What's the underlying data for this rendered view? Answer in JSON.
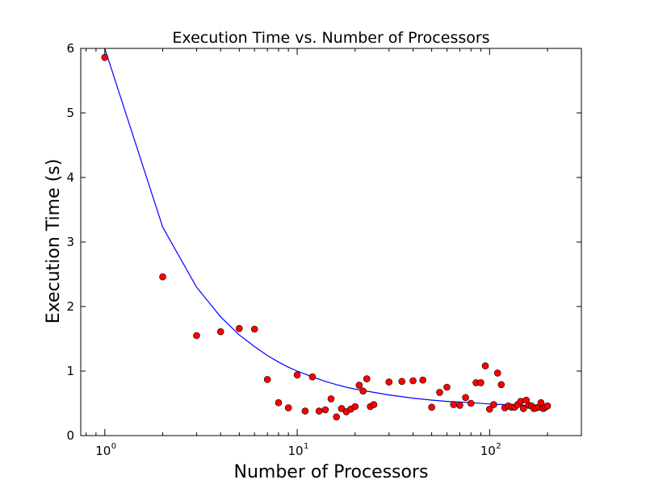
{
  "chart_data": {
    "type": "scatter",
    "title": "Execution Time vs. Number of Processors",
    "xlabel": "Number of Processors",
    "ylabel": "Execution Time (s)",
    "xscale": "log",
    "xlim": [
      0.75,
      300
    ],
    "ylim": [
      0,
      6
    ],
    "grid": false,
    "legend": "none",
    "x_ticks": [
      {
        "value": 1,
        "base": "10",
        "exp": "0"
      },
      {
        "value": 10,
        "base": "10",
        "exp": "1"
      },
      {
        "value": 100,
        "base": "10",
        "exp": "2"
      }
    ],
    "y_ticks": [
      0,
      1,
      2,
      3,
      4,
      5,
      6
    ],
    "colors": {
      "points": "#ff0000",
      "point_edge": "#000000",
      "curve": "#0000ff"
    },
    "series": [
      {
        "kind": "scatter",
        "points": [
          [
            1,
            5.86
          ],
          [
            2,
            2.46
          ],
          [
            3,
            1.55
          ],
          [
            4,
            1.61
          ],
          [
            5,
            1.66
          ],
          [
            6,
            1.65
          ],
          [
            7,
            0.87
          ],
          [
            8,
            0.51
          ],
          [
            9,
            0.43
          ],
          [
            10,
            0.94
          ],
          [
            11,
            0.38
          ],
          [
            12,
            0.91
          ],
          [
            13,
            0.38
          ],
          [
            14,
            0.4
          ],
          [
            15,
            0.57
          ],
          [
            16,
            0.29
          ],
          [
            17,
            0.42
          ],
          [
            18,
            0.37
          ],
          [
            19,
            0.41
          ],
          [
            20,
            0.45
          ],
          [
            21,
            0.78
          ],
          [
            22,
            0.69
          ],
          [
            23,
            0.88
          ],
          [
            24,
            0.45
          ],
          [
            25,
            0.48
          ],
          [
            30,
            0.83
          ],
          [
            35,
            0.84
          ],
          [
            40,
            0.85
          ],
          [
            45,
            0.86
          ],
          [
            50,
            0.44
          ],
          [
            55,
            0.67
          ],
          [
            60,
            0.75
          ],
          [
            65,
            0.48
          ],
          [
            70,
            0.47
          ],
          [
            75,
            0.59
          ],
          [
            80,
            0.5
          ],
          [
            85,
            0.82
          ],
          [
            90,
            0.82
          ],
          [
            95,
            1.08
          ],
          [
            100,
            0.41
          ],
          [
            105,
            0.48
          ],
          [
            110,
            0.97
          ],
          [
            115,
            0.79
          ],
          [
            120,
            0.43
          ],
          [
            125,
            0.46
          ],
          [
            130,
            0.44
          ],
          [
            135,
            0.44
          ],
          [
            140,
            0.48
          ],
          [
            145,
            0.53
          ],
          [
            150,
            0.42
          ],
          [
            155,
            0.55
          ],
          [
            160,
            0.47
          ],
          [
            165,
            0.46
          ],
          [
            170,
            0.42
          ],
          [
            175,
            0.43
          ],
          [
            180,
            0.44
          ],
          [
            185,
            0.51
          ],
          [
            190,
            0.42
          ],
          [
            195,
            0.44
          ],
          [
            200,
            0.46
          ]
        ]
      },
      {
        "kind": "line",
        "points": [
          [
            1,
            6.0
          ],
          [
            2,
            3.23
          ],
          [
            3,
            2.3
          ],
          [
            4,
            1.84
          ],
          [
            5,
            1.56
          ],
          [
            6,
            1.38
          ],
          [
            7,
            1.24
          ],
          [
            8,
            1.14
          ],
          [
            9,
            1.06
          ],
          [
            10,
            1.0
          ],
          [
            12,
            0.91
          ],
          [
            14,
            0.84
          ],
          [
            16,
            0.79
          ],
          [
            18,
            0.75
          ],
          [
            20,
            0.72
          ],
          [
            25,
            0.67
          ],
          [
            30,
            0.63
          ],
          [
            40,
            0.58
          ],
          [
            50,
            0.55
          ],
          [
            60,
            0.53
          ],
          [
            70,
            0.52
          ],
          [
            80,
            0.51
          ],
          [
            100,
            0.49
          ],
          [
            120,
            0.48
          ],
          [
            150,
            0.47
          ],
          [
            200,
            0.46
          ]
        ]
      }
    ]
  }
}
